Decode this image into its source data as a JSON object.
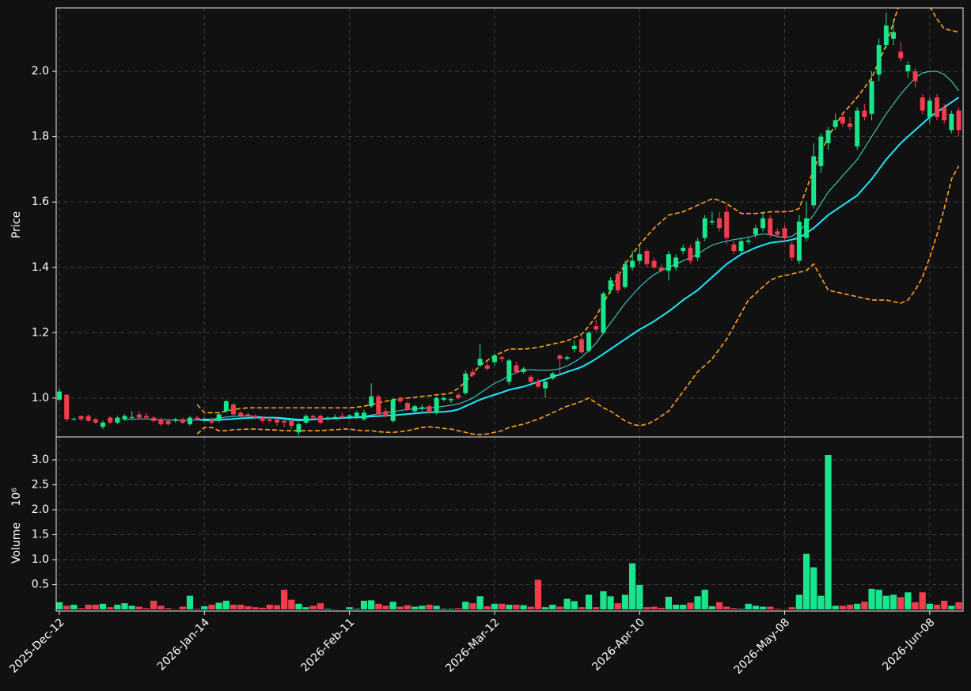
{
  "chart_data": {
    "type": "candlestick",
    "categories": [
      "2025-Dec-12",
      null,
      null,
      null,
      null,
      null,
      null,
      null,
      null,
      null,
      null,
      null,
      null,
      null,
      null,
      null,
      null,
      null,
      null,
      null,
      "2026-Jan-14",
      null,
      null,
      null,
      null,
      null,
      null,
      null,
      null,
      null,
      null,
      null,
      null,
      null,
      null,
      null,
      null,
      null,
      null,
      null,
      "2026-Feb-11",
      null,
      null,
      null,
      null,
      null,
      null,
      null,
      null,
      null,
      null,
      null,
      null,
      null,
      null,
      null,
      null,
      null,
      null,
      null,
      "2026-Mar-12",
      null,
      null,
      null,
      null,
      null,
      null,
      null,
      null,
      null,
      null,
      null,
      null,
      null,
      null,
      null,
      null,
      null,
      null,
      null,
      "2026-Apr-10",
      null,
      null,
      null,
      null,
      null,
      null,
      null,
      null,
      null,
      null,
      null,
      null,
      null,
      null,
      null,
      null,
      null,
      null,
      null,
      "2026-May-08",
      null,
      null,
      null,
      null,
      null,
      null,
      null,
      null,
      null,
      null,
      null,
      null,
      null,
      null,
      null,
      null,
      null,
      null,
      null,
      "2026-Jun-08",
      null,
      null,
      null,
      null
    ],
    "xticks": [
      0,
      20,
      40,
      60,
      80,
      100,
      120
    ],
    "xlim": [
      -0.44,
      124.6
    ],
    "open": [
      0.995,
      1.01,
      0.935,
      0.945,
      0.945,
      0.935,
      0.912,
      0.94,
      0.925,
      0.935,
      0.94,
      0.95,
      0.945,
      0.94,
      0.935,
      0.93,
      0.93,
      0.935,
      0.92,
      0.94,
      0.933,
      0.935,
      0.93,
      0.96,
      0.98,
      0.955,
      0.95,
      0.945,
      0.94,
      0.935,
      0.935,
      0.93,
      0.93,
      0.895,
      0.925,
      0.945,
      0.945,
      0.935,
      0.94,
      0.945,
      0.943,
      0.94,
      0.935,
      0.975,
      1.005,
      0.96,
      0.93,
      1.0,
      0.985,
      0.96,
      0.968,
      0.975,
      0.955,
      0.995,
      0.993,
      1.01,
      1.015,
      1.08,
      1.1,
      1.1,
      1.11,
      1.125,
      1.05,
      1.1,
      1.08,
      1.065,
      1.05,
      1.03,
      1.06,
      1.13,
      1.12,
      1.15,
      1.18,
      1.145,
      1.22,
      1.2,
      1.33,
      1.38,
      1.34,
      1.4,
      1.42,
      1.45,
      1.42,
      1.4,
      1.39,
      1.4,
      1.45,
      1.46,
      1.43,
      1.49,
      1.538,
      1.55,
      1.57,
      1.47,
      1.45,
      1.478,
      1.5,
      1.52,
      1.55,
      1.51,
      1.52,
      1.47,
      1.42,
      1.49,
      1.59,
      1.71,
      1.78,
      1.83,
      1.86,
      1.84,
      1.77,
      1.88,
      1.87,
      1.99,
      2.08,
      2.1,
      2.06,
      2.0,
      2.0,
      1.92,
      1.86,
      1.92,
      1.89,
      1.82,
      1.88
    ],
    "high": [
      1.03,
      1.012,
      0.94,
      0.947,
      0.95,
      0.94,
      0.93,
      0.945,
      0.945,
      0.95,
      0.96,
      0.96,
      0.955,
      0.945,
      0.94,
      0.935,
      0.94,
      0.94,
      0.945,
      0.945,
      0.94,
      0.94,
      0.955,
      0.995,
      0.985,
      0.96,
      0.955,
      0.95,
      0.945,
      0.945,
      0.94,
      0.935,
      0.935,
      0.925,
      0.95,
      0.95,
      0.95,
      0.945,
      0.95,
      0.955,
      0.95,
      0.96,
      0.965,
      1.045,
      1.01,
      0.97,
      1.0,
      1.005,
      0.99,
      0.98,
      0.98,
      0.98,
      1.005,
      1.005,
      1.0,
      1.015,
      1.085,
      1.09,
      1.165,
      1.11,
      1.135,
      1.13,
      1.12,
      1.11,
      1.095,
      1.07,
      1.06,
      1.055,
      1.08,
      1.135,
      1.13,
      1.175,
      1.19,
      1.205,
      1.24,
      1.325,
      1.37,
      1.39,
      1.42,
      1.45,
      1.47,
      1.455,
      1.43,
      1.41,
      1.45,
      1.44,
      1.47,
      1.47,
      1.49,
      1.56,
      1.57,
      1.57,
      1.59,
      1.48,
      1.49,
      1.49,
      1.53,
      1.57,
      1.56,
      1.52,
      1.53,
      1.48,
      1.56,
      1.6,
      1.78,
      1.81,
      1.83,
      1.87,
      1.87,
      1.86,
      1.89,
      1.9,
      2.0,
      2.1,
      2.18,
      2.16,
      2.09,
      2.03,
      2.01,
      1.93,
      1.92,
      1.93,
      1.9,
      1.88,
      1.89
    ],
    "low": [
      0.99,
      0.928,
      0.93,
      0.93,
      0.928,
      0.92,
      0.905,
      0.92,
      0.92,
      0.93,
      0.935,
      0.935,
      0.935,
      0.925,
      0.915,
      0.915,
      0.925,
      0.92,
      0.915,
      0.93,
      0.93,
      0.92,
      0.925,
      0.955,
      0.945,
      0.94,
      0.94,
      0.935,
      0.925,
      0.925,
      0.915,
      0.91,
      0.905,
      0.885,
      0.92,
      0.935,
      0.92,
      0.93,
      0.935,
      0.935,
      0.935,
      0.935,
      0.93,
      0.97,
      0.945,
      0.94,
      0.925,
      0.985,
      0.96,
      0.955,
      0.96,
      0.95,
      0.95,
      0.99,
      0.985,
      0.995,
      1.01,
      1.065,
      1.095,
      1.085,
      1.1,
      1.11,
      1.04,
      1.075,
      1.075,
      1.045,
      1.03,
      1.0,
      1.055,
      1.07,
      1.115,
      1.14,
      1.135,
      1.14,
      1.2,
      1.195,
      1.32,
      1.32,
      1.335,
      1.39,
      1.41,
      1.4,
      1.395,
      1.385,
      1.36,
      1.39,
      1.44,
      1.41,
      1.42,
      1.48,
      1.53,
      1.51,
      1.47,
      1.44,
      1.44,
      1.47,
      1.49,
      1.51,
      1.49,
      1.49,
      1.48,
      1.42,
      1.41,
      1.48,
      1.58,
      1.69,
      1.76,
      1.82,
      1.83,
      1.82,
      1.76,
      1.85,
      1.85,
      1.97,
      2.07,
      2.08,
      2.03,
      1.98,
      1.95,
      1.87,
      1.84,
      1.85,
      1.84,
      1.81,
      1.8
    ],
    "close": [
      1.02,
      0.935,
      0.937,
      0.935,
      0.93,
      0.925,
      0.925,
      0.925,
      0.94,
      0.945,
      0.942,
      0.94,
      0.94,
      0.93,
      0.92,
      0.92,
      0.935,
      0.925,
      0.94,
      0.935,
      0.937,
      0.925,
      0.95,
      0.99,
      0.95,
      0.945,
      0.945,
      0.94,
      0.93,
      0.93,
      0.925,
      0.925,
      0.915,
      0.92,
      0.945,
      0.94,
      0.925,
      0.94,
      0.942,
      0.94,
      0.947,
      0.955,
      0.955,
      1.005,
      0.95,
      0.945,
      0.995,
      0.99,
      0.965,
      0.975,
      0.972,
      0.955,
      1.0,
      1.0,
      0.997,
      1.0,
      1.075,
      1.07,
      1.12,
      1.09,
      1.13,
      1.12,
      1.115,
      1.08,
      1.09,
      1.05,
      1.035,
      1.05,
      1.075,
      1.12,
      1.125,
      1.16,
      1.14,
      1.2,
      1.21,
      1.32,
      1.36,
      1.33,
      1.41,
      1.42,
      1.44,
      1.41,
      1.4,
      1.39,
      1.44,
      1.43,
      1.46,
      1.42,
      1.48,
      1.55,
      1.542,
      1.52,
      1.49,
      1.45,
      1.48,
      1.482,
      1.52,
      1.55,
      1.5,
      1.5,
      1.49,
      1.43,
      1.54,
      1.55,
      1.74,
      1.8,
      1.82,
      1.85,
      1.84,
      1.83,
      1.88,
      1.86,
      1.97,
      2.08,
      2.14,
      2.12,
      2.04,
      2.02,
      1.97,
      1.88,
      1.91,
      1.86,
      1.85,
      1.87,
      1.82
    ],
    "volume": [
      0.15,
      0.08,
      0.1,
      0.03,
      0.1,
      0.1,
      0.12,
      0.05,
      0.1,
      0.13,
      0.08,
      0.06,
      0.03,
      0.18,
      0.08,
      0.03,
      0.01,
      0.06,
      0.28,
      0.02,
      0.07,
      0.1,
      0.14,
      0.18,
      0.1,
      0.1,
      0.07,
      0.05,
      0.04,
      0.1,
      0.09,
      0.4,
      0.2,
      0.12,
      0.05,
      0.08,
      0.13,
      0.02,
      0.01,
      0.0,
      0.05,
      0.02,
      0.18,
      0.19,
      0.12,
      0.08,
      0.16,
      0.06,
      0.09,
      0.06,
      0.08,
      0.1,
      0.08,
      0.02,
      0.02,
      0.03,
      0.16,
      0.13,
      0.27,
      0.07,
      0.12,
      0.12,
      0.1,
      0.1,
      0.09,
      0.06,
      0.6,
      0.05,
      0.1,
      0.06,
      0.22,
      0.17,
      0.05,
      0.3,
      0.05,
      0.37,
      0.27,
      0.13,
      0.3,
      0.93,
      0.5,
      0.05,
      0.06,
      0.04,
      0.26,
      0.1,
      0.1,
      0.14,
      0.27,
      0.4,
      0.07,
      0.15,
      0.06,
      0.03,
      0.02,
      0.12,
      0.08,
      0.06,
      0.06,
      0.02,
      0.01,
      0.05,
      0.3,
      1.12,
      0.85,
      0.28,
      3.1,
      0.08,
      0.08,
      0.1,
      0.12,
      0.16,
      0.42,
      0.4,
      0.28,
      0.3,
      0.25,
      0.35,
      0.15,
      0.35,
      0.12,
      0.1,
      0.18,
      0.08,
      0.15
    ],
    "up_color": "#19e68c",
    "down_color": "#f23d4e",
    "overlays": [
      {
        "color": "#ffa31a",
        "width": 1.6,
        "dash": "6 3",
        "values": [
          null,
          null,
          null,
          null,
          null,
          null,
          null,
          null,
          null,
          null,
          null,
          null,
          null,
          null,
          null,
          null,
          null,
          null,
          null,
          0.98,
          0.955,
          0.955,
          0.955,
          0.96,
          0.965,
          0.968,
          0.97,
          0.97,
          0.97,
          0.97,
          0.97,
          0.97,
          0.97,
          0.97,
          0.97,
          0.97,
          0.97,
          0.97,
          0.97,
          0.97,
          0.97,
          0.972,
          0.975,
          0.98,
          0.985,
          0.99,
          0.995,
          0.998,
          1.0,
          1.002,
          1.005,
          1.007,
          1.01,
          1.012,
          1.015,
          1.03,
          1.05,
          1.075,
          1.1,
          1.115,
          1.13,
          1.14,
          1.15,
          1.15,
          1.15,
          1.152,
          1.155,
          1.16,
          1.165,
          1.17,
          1.175,
          1.185,
          1.195,
          1.22,
          1.25,
          1.29,
          1.33,
          1.37,
          1.41,
          1.44,
          1.47,
          1.495,
          1.52,
          1.54,
          1.56,
          1.565,
          1.57,
          1.58,
          1.59,
          1.6,
          1.61,
          1.605,
          1.595,
          1.58,
          1.565,
          1.565,
          1.565,
          1.567,
          1.57,
          1.57,
          1.57,
          1.572,
          1.58,
          1.64,
          1.7,
          1.75,
          1.8,
          1.835,
          1.87,
          1.895,
          1.92,
          1.95,
          1.98,
          2.03,
          2.08,
          2.15,
          2.22,
          2.27,
          2.29,
          2.25,
          2.2,
          2.16,
          2.13,
          2.125,
          2.12
        ]
      },
      {
        "color": "#ffa31a",
        "width": 1.6,
        "dash": "6 3",
        "values": [
          null,
          null,
          null,
          null,
          null,
          null,
          null,
          null,
          null,
          null,
          null,
          null,
          null,
          null,
          null,
          null,
          null,
          null,
          null,
          0.89,
          0.91,
          0.91,
          0.9,
          0.9,
          0.903,
          0.904,
          0.905,
          0.905,
          0.904,
          0.903,
          0.902,
          0.9,
          0.9,
          0.9,
          0.9,
          0.9,
          0.9,
          0.902,
          0.903,
          0.905,
          0.905,
          0.902,
          0.9,
          0.9,
          0.897,
          0.895,
          0.895,
          0.897,
          0.9,
          0.905,
          0.91,
          0.912,
          0.91,
          0.907,
          0.905,
          0.9,
          0.895,
          0.89,
          0.888,
          0.89,
          0.895,
          0.9,
          0.91,
          0.915,
          0.92,
          0.928,
          0.935,
          0.945,
          0.955,
          0.965,
          0.975,
          0.982,
          0.99,
          1.0,
          0.985,
          0.97,
          0.96,
          0.945,
          0.93,
          0.92,
          0.915,
          0.92,
          0.93,
          0.945,
          0.96,
          0.99,
          1.02,
          1.05,
          1.08,
          1.1,
          1.12,
          1.15,
          1.18,
          1.22,
          1.26,
          1.3,
          1.32,
          1.34,
          1.36,
          1.37,
          1.375,
          1.38,
          1.385,
          1.39,
          1.41,
          1.37,
          1.33,
          1.325,
          1.32,
          1.315,
          1.31,
          1.305,
          1.3,
          1.3,
          1.3,
          1.295,
          1.29,
          1.3,
          1.33,
          1.37,
          1.43,
          1.5,
          1.58,
          1.67,
          1.71
        ]
      },
      {
        "color": "#3fe0d8",
        "width": 1,
        "dash": "none",
        "values": [
          null,
          null,
          null,
          null,
          null,
          null,
          null,
          null,
          null,
          0.935,
          0.935,
          0.936,
          0.936,
          0.935,
          0.934,
          0.933,
          0.932,
          0.932,
          0.932,
          0.933,
          0.935,
          0.936,
          0.938,
          0.942,
          0.944,
          0.945,
          0.945,
          0.944,
          0.942,
          0.94,
          0.938,
          0.935,
          0.932,
          0.93,
          0.932,
          0.933,
          0.935,
          0.936,
          0.937,
          0.938,
          0.94,
          0.942,
          0.944,
          0.948,
          0.952,
          0.955,
          0.958,
          0.962,
          0.965,
          0.967,
          0.968,
          0.97,
          0.972,
          0.975,
          0.978,
          0.982,
          0.99,
          1.0,
          1.015,
          1.03,
          1.045,
          1.055,
          1.068,
          1.078,
          1.085,
          1.087,
          1.085,
          1.085,
          1.086,
          1.09,
          1.098,
          1.11,
          1.125,
          1.145,
          1.168,
          1.2,
          1.23,
          1.26,
          1.29,
          1.315,
          1.34,
          1.36,
          1.378,
          1.39,
          1.4,
          1.41,
          1.42,
          1.43,
          1.44,
          1.455,
          1.468,
          1.475,
          1.48,
          1.485,
          1.488,
          1.492,
          1.498,
          1.502,
          1.5,
          1.495,
          1.49,
          1.495,
          1.51,
          1.535,
          1.56,
          1.595,
          1.63,
          1.655,
          1.68,
          1.705,
          1.73,
          1.765,
          1.8,
          1.835,
          1.87,
          1.9,
          1.93,
          1.955,
          1.98,
          1.995,
          2.0,
          2.0,
          1.99,
          1.97,
          1.94
        ]
      },
      {
        "color": "#1ee8ff",
        "width": 2,
        "dash": "none",
        "values": [
          null,
          null,
          null,
          null,
          null,
          null,
          null,
          null,
          null,
          null,
          null,
          null,
          null,
          null,
          null,
          null,
          null,
          null,
          null,
          0.935,
          0.932,
          0.932,
          0.933,
          0.935,
          0.936,
          0.938,
          0.939,
          0.94,
          0.94,
          0.94,
          0.94,
          0.938,
          0.936,
          0.934,
          0.934,
          0.935,
          0.936,
          0.937,
          0.938,
          0.939,
          0.94,
          0.941,
          0.942,
          0.944,
          0.945,
          0.946,
          0.947,
          0.949,
          0.951,
          0.953,
          0.955,
          0.956,
          0.957,
          0.958,
          0.96,
          0.965,
          0.975,
          0.985,
          0.995,
          1.003,
          1.01,
          1.017,
          1.025,
          1.03,
          1.035,
          1.042,
          1.05,
          1.057,
          1.065,
          1.072,
          1.08,
          1.087,
          1.095,
          1.107,
          1.12,
          1.135,
          1.15,
          1.165,
          1.18,
          1.195,
          1.21,
          1.222,
          1.235,
          1.25,
          1.265,
          1.282,
          1.3,
          1.315,
          1.33,
          1.35,
          1.37,
          1.39,
          1.41,
          1.425,
          1.44,
          1.45,
          1.46,
          1.468,
          1.475,
          1.478,
          1.48,
          1.485,
          1.49,
          1.505,
          1.52,
          1.54,
          1.56,
          1.575,
          1.59,
          1.605,
          1.62,
          1.645,
          1.67,
          1.7,
          1.73,
          1.755,
          1.78,
          1.8,
          1.82,
          1.84,
          1.86,
          1.875,
          1.89,
          1.905,
          1.92
        ]
      }
    ],
    "ylabel": "Price",
    "ylim": [
      0.881,
      2.194
    ],
    "yticks": [
      {
        "value": 1,
        "label": "1.0"
      },
      1.2,
      1.4,
      1.6,
      1.8,
      {
        "value": 2,
        "label": "2.0"
      }
    ],
    "volume_ylabel": "Volume",
    "volume_offset": "10⁶",
    "volume_ylim": [
      -0.03,
      3.46
    ],
    "volume_yticks": [
      0.5,
      {
        "value": 1,
        "label": "1.0"
      },
      1.5,
      {
        "value": 2,
        "label": "2.0"
      },
      2.5,
      {
        "value": 3,
        "label": "3.0"
      }
    ],
    "grid": true
  }
}
